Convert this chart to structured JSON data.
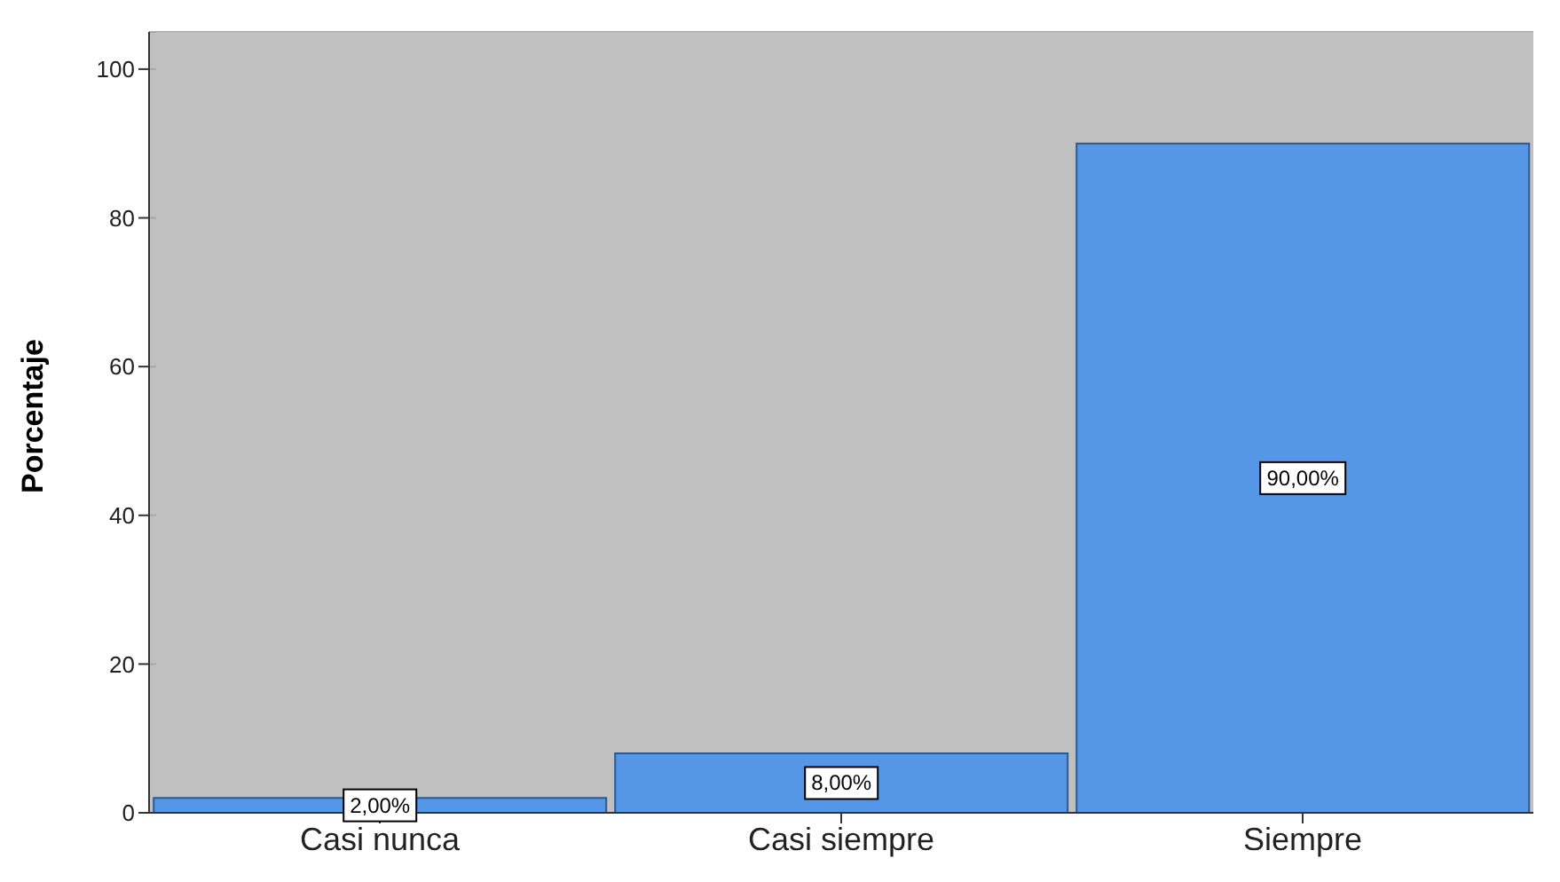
{
  "chart_data": {
    "type": "bar",
    "ylabel": "Porcentaje",
    "categories": [
      "Casi nunca",
      "Casi siempre",
      "Siempre"
    ],
    "values": [
      2,
      8,
      90
    ],
    "value_labels": [
      "2,00%",
      "8,00%",
      "90,00%"
    ],
    "color": "#5596e6",
    "ylim": [
      0,
      105
    ],
    "yticks": [
      0,
      20,
      40,
      60,
      80,
      100
    ],
    "grid": "y"
  }
}
